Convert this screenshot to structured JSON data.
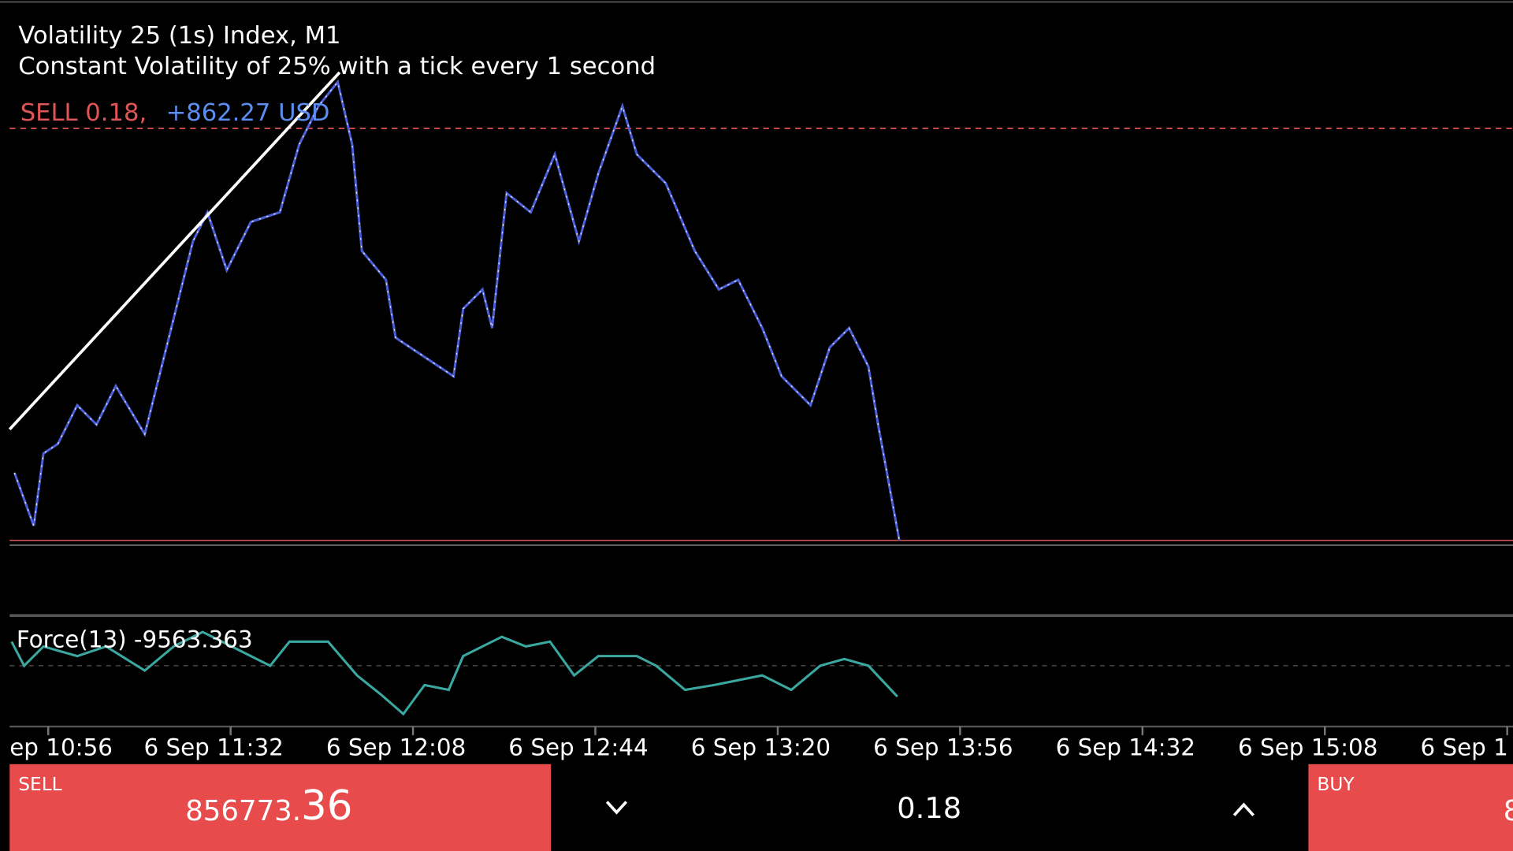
{
  "header": {
    "title": "Volatility 25 (1s) Index, M1",
    "subtitle": "Constant Volatility of 25% with a tick every 1 second"
  },
  "position": {
    "side_volume": "SELL 0.18,",
    "profit": "+862.27 USD"
  },
  "indicator": {
    "label": "Force(13) -9563.363"
  },
  "time_axis": {
    "labels": [
      "ep 10:56",
      "6 Sep 11:32",
      "6 Sep 12:08",
      "6 Sep 12:44",
      "6 Sep 13:20",
      "6 Sep 13:56",
      "6 Sep 14:32",
      "6 Sep 15:08",
      "6 Sep 1"
    ]
  },
  "trade_bar": {
    "sell": {
      "label": "SELL",
      "price_main": "856773.",
      "price_big": "36"
    },
    "volume": "0.18",
    "buy": {
      "label": "BUY",
      "price": "8"
    }
  }
}
